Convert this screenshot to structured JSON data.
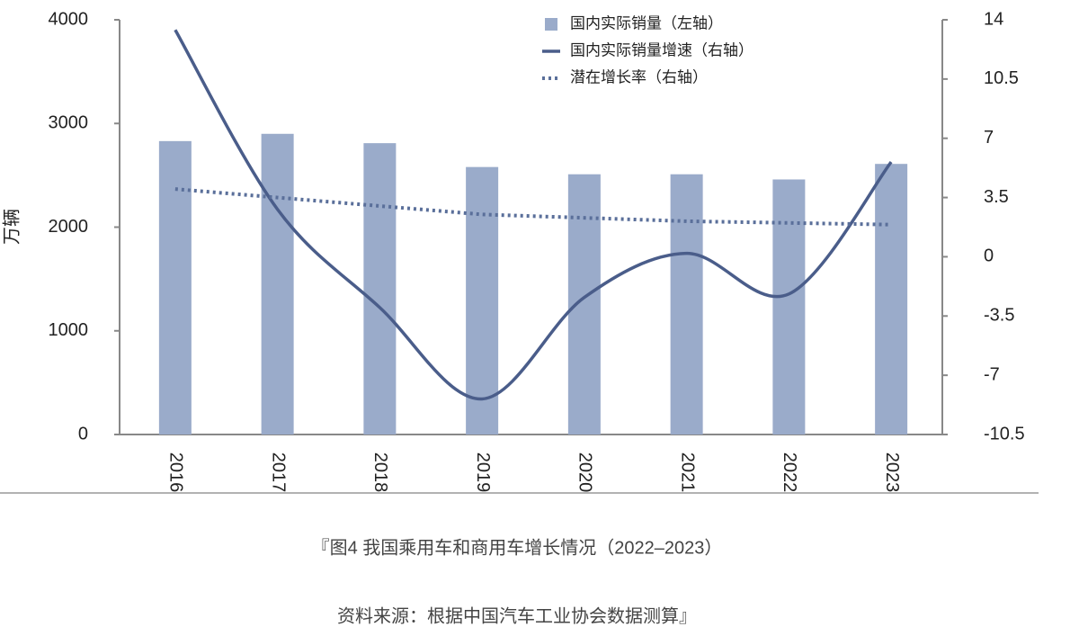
{
  "chart_data": {
    "type": "bar",
    "y_label": "万辆",
    "categories": [
      "2016",
      "2017",
      "2018",
      "2019",
      "2020",
      "2021",
      "2022",
      "2023"
    ],
    "series": [
      {
        "name": "国内实际销量（左轴）",
        "type": "bar",
        "axis": "y",
        "color": "#9aabca",
        "values": [
          2830,
          2900,
          2810,
          2580,
          2510,
          2510,
          2460,
          2610
        ]
      },
      {
        "name": "国内实际销量增速（右轴）",
        "type": "line",
        "style": "solid",
        "axis": "y2",
        "color": "#4a5d8a",
        "values": [
          13.4,
          2.8,
          -3.0,
          -8.4,
          -2.4,
          0.2,
          -2.2,
          5.6
        ]
      },
      {
        "name": "潜在增长率（右轴）",
        "type": "line",
        "style": "dotted",
        "axis": "y2",
        "color": "#5a6f9a",
        "values": [
          4.0,
          3.5,
          3.0,
          2.5,
          2.3,
          2.1,
          2.0,
          1.9
        ]
      }
    ],
    "ylim": [
      0,
      4000
    ],
    "yticks": [
      0,
      1000,
      2000,
      3000,
      4000
    ],
    "y2lim": [
      -10.5,
      14
    ],
    "y2ticks": [
      -10.5,
      -7,
      -3.5,
      0,
      3.5,
      7,
      10.5,
      14
    ],
    "grid": false,
    "caption": "『图4 我国乘用车和商用车增长情况（2022–2023）",
    "source": "资料来源：根据中国汽车工业协会数据测算』"
  }
}
